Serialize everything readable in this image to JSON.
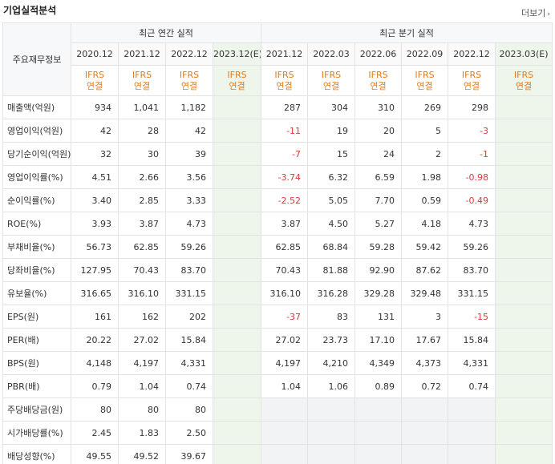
{
  "title": "기업실적분석",
  "more_label": "더보기",
  "header": {
    "label_column": "주요재무정보",
    "annual_group": "최근 연간 실적",
    "quarterly_group": "최근 분기 실적",
    "annual_dates": [
      "2020.12",
      "2021.12",
      "2022.12",
      "2023.12(E)"
    ],
    "quarterly_dates": [
      "2021.12",
      "2022.03",
      "2022.06",
      "2022.09",
      "2022.12",
      "2023.03(E)"
    ],
    "ifrs_line1": "IFRS",
    "ifrs_line2": "연결"
  },
  "rows": [
    {
      "label": "매출액(억원)",
      "annual": [
        "934",
        "1,041",
        "1,182",
        ""
      ],
      "quarterly": [
        "287",
        "304",
        "310",
        "269",
        "298",
        ""
      ]
    },
    {
      "label": "영업이익(억원)",
      "annual": [
        "42",
        "28",
        "42",
        ""
      ],
      "quarterly": [
        "-11",
        "19",
        "20",
        "5",
        "-3",
        ""
      ]
    },
    {
      "label": "당기순이익(억원)",
      "annual": [
        "32",
        "30",
        "39",
        ""
      ],
      "quarterly": [
        "-7",
        "15",
        "24",
        "2",
        "-1",
        ""
      ]
    },
    {
      "label": "영업이익률(%)",
      "annual": [
        "4.51",
        "2.66",
        "3.56",
        ""
      ],
      "quarterly": [
        "-3.74",
        "6.32",
        "6.59",
        "1.98",
        "-0.98",
        ""
      ]
    },
    {
      "label": "순이익률(%)",
      "annual": [
        "3.40",
        "2.85",
        "3.33",
        ""
      ],
      "quarterly": [
        "-2.52",
        "5.05",
        "7.70",
        "0.59",
        "-0.49",
        ""
      ]
    },
    {
      "label": "ROE(%)",
      "annual": [
        "3.93",
        "3.87",
        "4.73",
        ""
      ],
      "quarterly": [
        "3.87",
        "4.50",
        "5.27",
        "4.18",
        "4.73",
        ""
      ]
    },
    {
      "label": "부채비율(%)",
      "annual": [
        "56.73",
        "62.85",
        "59.26",
        ""
      ],
      "quarterly": [
        "62.85",
        "68.84",
        "59.28",
        "59.42",
        "59.26",
        ""
      ]
    },
    {
      "label": "당좌비율(%)",
      "annual": [
        "127.95",
        "70.43",
        "83.70",
        ""
      ],
      "quarterly": [
        "70.43",
        "81.88",
        "92.90",
        "87.62",
        "83.70",
        ""
      ]
    },
    {
      "label": "유보율(%)",
      "annual": [
        "316.65",
        "316.10",
        "331.15",
        ""
      ],
      "quarterly": [
        "316.10",
        "316.28",
        "329.28",
        "329.48",
        "331.15",
        ""
      ]
    },
    {
      "label": "EPS(원)",
      "annual": [
        "161",
        "162",
        "202",
        ""
      ],
      "quarterly": [
        "-37",
        "83",
        "131",
        "3",
        "-15",
        ""
      ]
    },
    {
      "label": "PER(배)",
      "annual": [
        "20.22",
        "27.02",
        "15.84",
        ""
      ],
      "quarterly": [
        "27.02",
        "23.73",
        "17.10",
        "17.67",
        "15.84",
        ""
      ]
    },
    {
      "label": "BPS(원)",
      "annual": [
        "4,148",
        "4,197",
        "4,331",
        ""
      ],
      "quarterly": [
        "4,197",
        "4,210",
        "4,349",
        "4,373",
        "4,331",
        ""
      ]
    },
    {
      "label": "PBR(배)",
      "annual": [
        "0.79",
        "1.04",
        "0.74",
        ""
      ],
      "quarterly": [
        "1.04",
        "1.06",
        "0.89",
        "0.72",
        "0.74",
        ""
      ]
    },
    {
      "label": "주당배당금(원)",
      "annual": [
        "80",
        "80",
        "80",
        ""
      ],
      "quarterly": [
        "",
        "",
        "",
        "",
        "",
        ""
      ]
    },
    {
      "label": "시가배당률(%)",
      "annual": [
        "2.45",
        "1.83",
        "2.50",
        ""
      ],
      "quarterly": [
        "",
        "",
        "",
        "",
        "",
        ""
      ]
    },
    {
      "label": "배당성향(%)",
      "annual": [
        "49.55",
        "49.52",
        "39.67",
        ""
      ],
      "quarterly": [
        "",
        "",
        "",
        "",
        "",
        ""
      ]
    }
  ],
  "colors": {
    "ifrs": "#e07c1f",
    "negative": "#d93a3a",
    "estimate_bg": "#eef5ea"
  }
}
